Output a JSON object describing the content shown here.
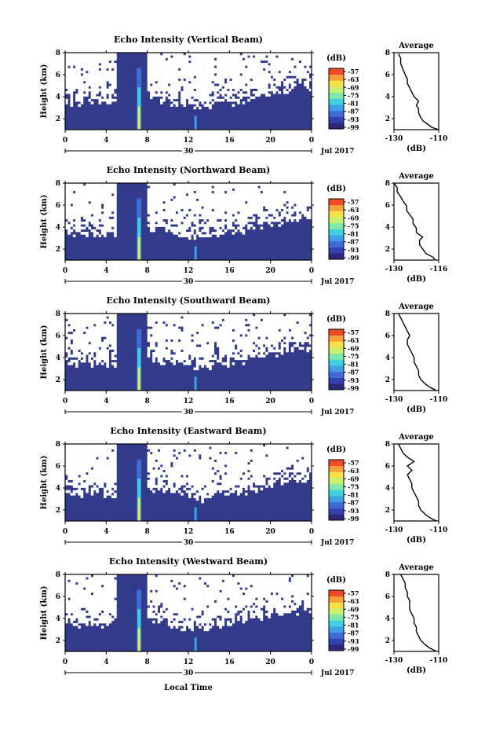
{
  "figure": {
    "common_xlabel": "Local Time",
    "date_label": "Jul 2017",
    "height_label": "Height (km)",
    "unit_label": "(dB)",
    "average_title": "Average",
    "average_xlabel": "(dB)",
    "day_label": "30"
  },
  "colors": {
    "background_echo": "#323a8c",
    "no_data": "#ffffff",
    "scale": [
      "#2a2a78",
      "#3540b0",
      "#3f6ad8",
      "#3fa0e8",
      "#40d0e0",
      "#7ee8a8",
      "#c8f070",
      "#f8e048",
      "#f8a038",
      "#f04a28"
    ]
  },
  "chart_data": [
    {
      "type": "heatmap",
      "title": "Echo Intensity (Vertical Beam)",
      "x": [
        0,
        4,
        8,
        12,
        16,
        20,
        0
      ],
      "xlabel": "Local Time",
      "ylabel": "Height (km)",
      "yticks": [
        2,
        4,
        6,
        8
      ],
      "ylim": [
        1,
        8
      ],
      "colorbar": {
        "label": "(dB)",
        "ticks": [
          -57,
          -63,
          -69,
          -75,
          -81,
          -87,
          -93,
          -99
        ]
      },
      "average_profile": {
        "title": "Average",
        "xlabel": "(dB)",
        "xticks": [
          -130,
          -110
        ],
        "yticks": [
          2,
          4,
          6,
          8
        ],
        "x": [
          -110,
          -113,
          -115,
          -117,
          -118,
          -119,
          -119,
          -120,
          -119,
          -121,
          -122,
          -123,
          -124,
          -124,
          -125,
          -126,
          -127,
          -127,
          -128
        ],
        "y": [
          1.0,
          1.2,
          1.5,
          1.8,
          2.1,
          2.5,
          2.9,
          3.2,
          3.6,
          4.0,
          4.4,
          4.8,
          5.2,
          5.6,
          6.0,
          6.5,
          7.0,
          7.5,
          7.9
        ]
      }
    },
    {
      "type": "heatmap",
      "title": "Echo Intensity (Northward Beam)",
      "x": [
        0,
        4,
        8,
        12,
        16,
        20,
        0
      ],
      "xlabel": "Local Time",
      "ylabel": "Height (km)",
      "yticks": [
        2,
        4,
        6,
        8
      ],
      "ylim": [
        1,
        8
      ],
      "colorbar": {
        "label": "(dB)",
        "ticks": [
          -57,
          -63,
          -69,
          -75,
          -81,
          -87,
          -93,
          -99
        ]
      },
      "average_profile": {
        "title": "Average",
        "xlabel": "(dB)",
        "xticks": [
          -130,
          -116
        ],
        "yticks": [
          2,
          4,
          6,
          8
        ],
        "x": [
          -117,
          -118,
          -120,
          -121,
          -122,
          -122,
          -121,
          -123,
          -123,
          -124,
          -124,
          -125,
          -126,
          -126,
          -127,
          -128,
          -129,
          -129,
          -130
        ],
        "y": [
          1.0,
          1.3,
          1.6,
          2.0,
          2.4,
          2.8,
          3.1,
          3.5,
          3.9,
          4.3,
          4.7,
          5.1,
          5.5,
          5.9,
          6.3,
          6.8,
          7.2,
          7.6,
          8.0
        ]
      }
    },
    {
      "type": "heatmap",
      "title": "Echo Intensity (Southward Beam)",
      "x": [
        0,
        4,
        8,
        12,
        16,
        20,
        0
      ],
      "xlabel": "Local Time",
      "ylabel": "Height (km)",
      "yticks": [
        2,
        4,
        6,
        8
      ],
      "ylim": [
        1,
        8
      ],
      "colorbar": {
        "label": "(dB)",
        "ticks": [
          -57,
          -63,
          -69,
          -75,
          -81,
          -87,
          -93,
          -99
        ]
      },
      "average_profile": {
        "title": "Average",
        "xlabel": "(dB)",
        "xticks": [
          -130,
          -110
        ],
        "yticks": [
          2,
          4,
          6,
          8
        ],
        "x": [
          -111,
          -114,
          -116,
          -118,
          -119,
          -119,
          -120,
          -121,
          -121,
          -122,
          -123,
          -124,
          -124,
          -123,
          -124,
          -125,
          -126,
          -127,
          -128
        ],
        "y": [
          1.0,
          1.3,
          1.6,
          2.0,
          2.4,
          2.8,
          3.2,
          3.6,
          4.0,
          4.4,
          4.8,
          5.2,
          5.6,
          6.0,
          6.4,
          6.8,
          7.2,
          7.6,
          8.0
        ]
      }
    },
    {
      "type": "heatmap",
      "title": "Echo Intensity (Eastward Beam)",
      "x": [
        0,
        4,
        8,
        12,
        16,
        20,
        0
      ],
      "xlabel": "Local Time",
      "ylabel": "Height (km)",
      "yticks": [
        2,
        4,
        6,
        8
      ],
      "ylim": [
        1,
        8
      ],
      "colorbar": {
        "label": "(dB)",
        "ticks": [
          -57,
          -63,
          -69,
          -75,
          -81,
          -87,
          -93,
          -99
        ]
      },
      "average_profile": {
        "title": "Average",
        "xlabel": "(dB)",
        "xticks": [
          -130,
          -110
        ],
        "yticks": [
          2,
          4,
          6,
          8
        ],
        "x": [
          -111,
          -114,
          -116,
          -118,
          -119,
          -119,
          -120,
          -121,
          -122,
          -122,
          -123,
          -124,
          -122,
          -124,
          -121,
          -124,
          -126,
          -127,
          -128
        ],
        "y": [
          1.0,
          1.3,
          1.6,
          2.0,
          2.4,
          2.8,
          3.2,
          3.6,
          4.0,
          4.4,
          4.8,
          5.2,
          5.6,
          6.0,
          6.4,
          6.8,
          7.2,
          7.6,
          8.0
        ]
      }
    },
    {
      "type": "heatmap",
      "title": "Echo Intensity (Westward Beam)",
      "x": [
        0,
        4,
        8,
        12,
        16,
        20,
        0
      ],
      "xlabel": "Local Time",
      "ylabel": "Height (km)",
      "yticks": [
        2,
        4,
        6,
        8
      ],
      "ylim": [
        1,
        8
      ],
      "colorbar": {
        "label": "(dB)",
        "ticks": [
          -57,
          -63,
          -69,
          -75,
          -81,
          -87,
          -93,
          -99
        ]
      },
      "average_profile": {
        "title": "Average",
        "xlabel": "(dB)",
        "xticks": [
          -130,
          -110
        ],
        "yticks": [
          2,
          4,
          6,
          8
        ],
        "x": [
          -111,
          -114,
          -116,
          -118,
          -119,
          -120,
          -120,
          -121,
          -121,
          -122,
          -123,
          -123,
          -123,
          -124,
          -124,
          -125,
          -125,
          -126,
          -127
        ],
        "y": [
          1.0,
          1.3,
          1.6,
          2.0,
          2.4,
          2.8,
          3.2,
          3.6,
          4.0,
          4.4,
          4.8,
          5.2,
          5.6,
          6.0,
          6.4,
          6.8,
          7.2,
          7.6,
          8.0
        ]
      }
    }
  ]
}
